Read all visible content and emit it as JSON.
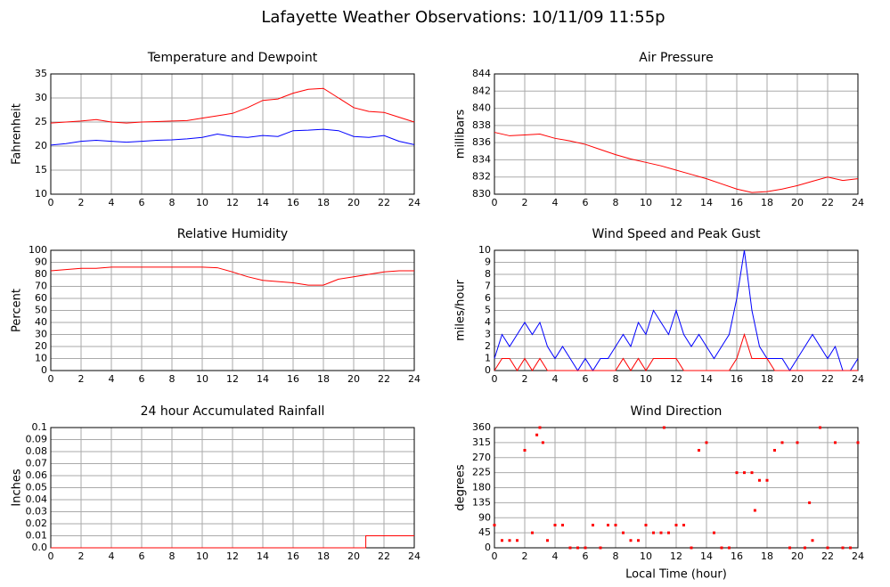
{
  "title": "Lafayette Weather Observations: 10/11/09 11:55p",
  "chart_data": [
    {
      "type": "line",
      "title": "Temperature and Dewpoint",
      "ylabel": "Fahrenheit",
      "x": [
        0,
        1,
        2,
        3,
        4,
        5,
        6,
        7,
        8,
        9,
        10,
        11,
        12,
        13,
        14,
        15,
        16,
        17,
        18,
        19,
        20,
        21,
        22,
        23,
        24
      ],
      "series": [
        {
          "color": "#ff0000",
          "values": [
            24.8,
            25,
            25.2,
            25.5,
            25,
            24.8,
            25,
            25.1,
            25.2,
            25.3,
            25.8,
            26.3,
            26.8,
            28,
            29.5,
            29.8,
            31,
            31.8,
            32,
            30,
            28,
            27.2,
            27,
            26,
            25
          ]
        },
        {
          "color": "#0000ff",
          "values": [
            20.2,
            20.5,
            21,
            21.2,
            21,
            20.8,
            21,
            21.2,
            21.3,
            21.5,
            21.8,
            22.5,
            22,
            21.8,
            22.2,
            22,
            23.2,
            23.3,
            23.5,
            23.2,
            22,
            21.8,
            22.2,
            21,
            20.3
          ]
        }
      ],
      "xlim": [
        0,
        24
      ],
      "xticks": [
        0,
        2,
        4,
        6,
        8,
        10,
        12,
        14,
        16,
        18,
        20,
        22,
        24
      ],
      "ylim": [
        10,
        35
      ],
      "yticks": [
        10,
        15,
        20,
        25,
        30,
        35
      ],
      "grid": true
    },
    {
      "type": "line",
      "title": "Air Pressure",
      "ylabel": "millibars",
      "x": [
        0,
        1,
        2,
        3,
        4,
        5,
        6,
        7,
        8,
        9,
        10,
        11,
        12,
        13,
        14,
        15,
        16,
        17,
        18,
        19,
        20,
        21,
        22,
        23,
        24
      ],
      "series": [
        {
          "color": "#ff0000",
          "values": [
            837.2,
            836.8,
            836.9,
            837,
            836.5,
            836.2,
            835.8,
            835.2,
            834.6,
            834.1,
            833.7,
            833.3,
            832.8,
            832.3,
            831.8,
            831.2,
            830.6,
            830.2,
            830.3,
            830.6,
            831,
            831.5,
            832,
            831.6,
            831.8
          ]
        }
      ],
      "xlim": [
        0,
        24
      ],
      "xticks": [
        0,
        2,
        4,
        6,
        8,
        10,
        12,
        14,
        16,
        18,
        20,
        22,
        24
      ],
      "ylim": [
        830,
        844
      ],
      "yticks": [
        830,
        832,
        834,
        836,
        838,
        840,
        842,
        844
      ],
      "grid": true
    },
    {
      "type": "line",
      "title": "Relative Humidity",
      "ylabel": "Percent",
      "x": [
        0,
        1,
        2,
        3,
        4,
        5,
        6,
        7,
        8,
        9,
        10,
        11,
        12,
        13,
        14,
        15,
        16,
        17,
        18,
        19,
        20,
        21,
        22,
        23,
        24
      ],
      "series": [
        {
          "color": "#ff0000",
          "values": [
            83,
            84,
            85,
            85,
            86,
            86,
            86,
            86,
            86,
            86,
            86,
            85.5,
            82,
            78,
            75,
            74,
            73,
            71,
            71,
            76,
            78,
            80,
            82,
            83,
            83
          ]
        }
      ],
      "xlim": [
        0,
        24
      ],
      "xticks": [
        0,
        2,
        4,
        6,
        8,
        10,
        12,
        14,
        16,
        18,
        20,
        22,
        24
      ],
      "ylim": [
        0,
        100
      ],
      "yticks": [
        0,
        10,
        20,
        30,
        40,
        50,
        60,
        70,
        80,
        90,
        100
      ],
      "grid": true
    },
    {
      "type": "line",
      "title": "Wind Speed and Peak Gust",
      "ylabel": "miles/hour",
      "x": [
        0,
        0.5,
        1,
        1.5,
        2,
        2.5,
        3,
        3.5,
        4,
        4.5,
        5,
        5.5,
        6,
        6.5,
        7,
        7.5,
        8,
        8.5,
        9,
        9.5,
        10,
        10.5,
        11,
        11.5,
        12,
        12.5,
        13,
        13.5,
        14,
        14.5,
        15,
        15.5,
        16,
        16.5,
        17,
        17.5,
        18,
        18.5,
        19,
        19.5,
        20,
        20.5,
        21,
        21.5,
        22,
        22.5,
        23,
        23.5,
        24
      ],
      "series": [
        {
          "color": "#0000ff",
          "values": [
            1,
            3,
            2,
            3,
            4,
            3,
            4,
            2,
            1,
            2,
            1,
            0,
            1,
            0,
            1,
            1,
            2,
            3,
            2,
            4,
            3,
            5,
            4,
            3,
            5,
            3,
            2,
            3,
            2,
            1,
            2,
            3,
            6,
            10,
            5,
            2,
            1,
            1,
            1,
            0,
            1,
            2,
            3,
            2,
            1,
            2,
            0,
            0,
            1
          ]
        },
        {
          "color": "#ff0000",
          "values": [
            0,
            1,
            1,
            0,
            1,
            0,
            1,
            0,
            0,
            0,
            0,
            0,
            0,
            0,
            0,
            0,
            0,
            1,
            0,
            1,
            0,
            1,
            1,
            1,
            1,
            0,
            0,
            0,
            0,
            0,
            0,
            0,
            1,
            3,
            1,
            1,
            1,
            0,
            0,
            0,
            0,
            0,
            0,
            0,
            0,
            0,
            0,
            0,
            0
          ]
        }
      ],
      "xlim": [
        0,
        24
      ],
      "xticks": [
        0,
        2,
        4,
        6,
        8,
        10,
        12,
        14,
        16,
        18,
        20,
        22,
        24
      ],
      "ylim": [
        0,
        10
      ],
      "yticks": [
        0,
        1,
        2,
        3,
        4,
        5,
        6,
        7,
        8,
        9,
        10
      ],
      "grid": true
    },
    {
      "type": "line",
      "title": "24 hour Accumulated Rainfall",
      "ylabel": "Inches",
      "x": [
        0,
        20.8,
        20.8,
        24
      ],
      "series": [
        {
          "color": "#ff0000",
          "values": [
            0,
            0,
            0.01,
            0.01
          ]
        }
      ],
      "xlim": [
        0,
        24
      ],
      "xticks": [
        0,
        2,
        4,
        6,
        8,
        10,
        12,
        14,
        16,
        18,
        20,
        22,
        24
      ],
      "ylim": [
        0,
        0.1
      ],
      "yticks": [
        {
          "value": 0,
          "label": "0.0"
        },
        0.01,
        0.02,
        0.03,
        0.04,
        0.05,
        0.06,
        0.07,
        0.08,
        0.09,
        0.1
      ],
      "grid": true
    },
    {
      "type": "scatter",
      "title": "Wind Direction",
      "ylabel": "degrees",
      "xlabel": "Local Time (hour)",
      "color": "#ff0000",
      "x": [
        0,
        0.5,
        1,
        1.5,
        2,
        2.5,
        2.8,
        3,
        3.2,
        3.5,
        4,
        4.5,
        5,
        5.5,
        6,
        6.5,
        7,
        7.5,
        8,
        8.5,
        9,
        9.5,
        10,
        10.5,
        11,
        11.2,
        11.5,
        12,
        12.5,
        13,
        13.5,
        14,
        14.5,
        15,
        15.5,
        16,
        16.5,
        17,
        17.2,
        17.5,
        18,
        18.5,
        19,
        19.5,
        20,
        20.5,
        20.8,
        21,
        21.5,
        22,
        22.5,
        23,
        23.5,
        24
      ],
      "values": [
        68,
        22,
        22,
        22,
        292,
        45,
        338,
        360,
        315,
        22,
        68,
        68,
        0,
        0,
        0,
        68,
        0,
        68,
        68,
        45,
        22,
        22,
        68,
        45,
        45,
        360,
        45,
        68,
        68,
        0,
        292,
        315,
        45,
        0,
        0,
        225,
        225,
        225,
        112,
        202,
        202,
        292,
        315,
        0,
        315,
        0,
        135,
        22,
        360,
        0,
        315,
        0,
        0,
        315
      ],
      "xlim": [
        0,
        24
      ],
      "xticks": [
        0,
        2,
        4,
        6,
        8,
        10,
        12,
        14,
        16,
        18,
        20,
        22,
        24
      ],
      "ylim": [
        0,
        360
      ],
      "yticks": [
        0,
        45,
        90,
        135,
        180,
        225,
        270,
        315,
        360
      ],
      "grid": true
    }
  ]
}
